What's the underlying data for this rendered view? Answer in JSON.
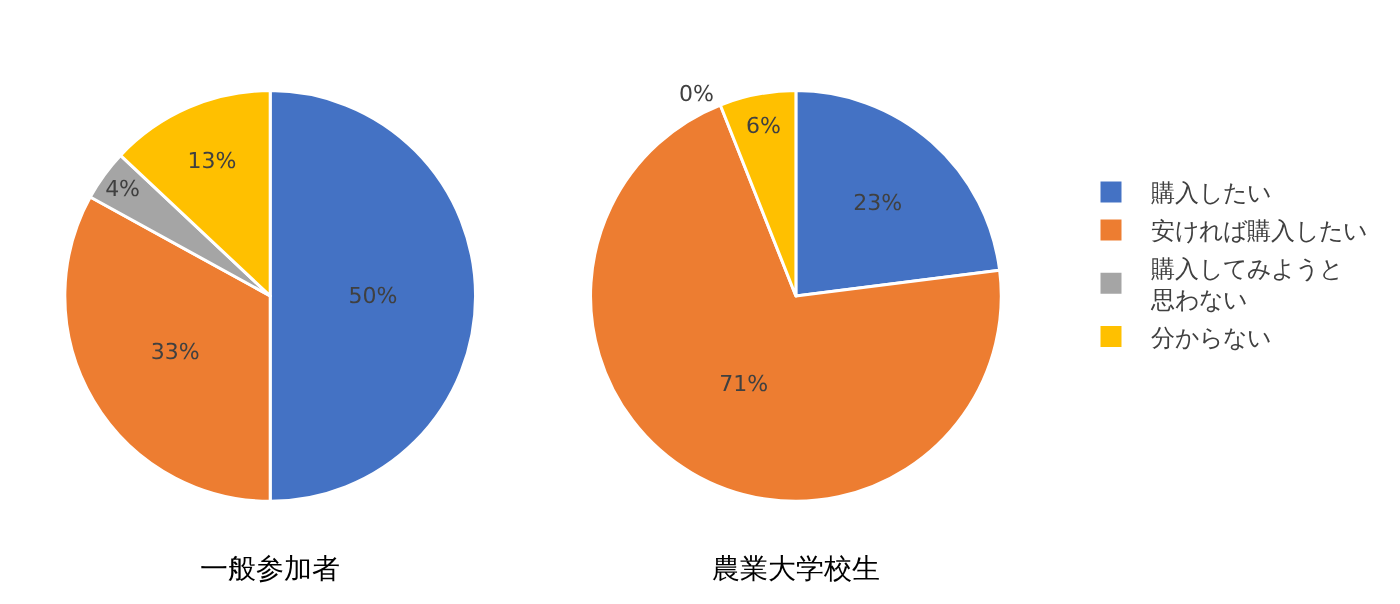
{
  "chart_data": [
    {
      "type": "pie",
      "title": "一般参加者",
      "categories": [
        "購入したい",
        "安ければ購入したい",
        "購入してみようと思わない",
        "分からない"
      ],
      "values": [
        50,
        33,
        4,
        13
      ],
      "value_labels": [
        "50%",
        "33%",
        "4%",
        "13%"
      ],
      "colors": [
        "#4472c4",
        "#ed7d31",
        "#a5a5a5",
        "#ffc000"
      ],
      "legend": "right"
    },
    {
      "type": "pie",
      "title": "農業大学校生",
      "categories": [
        null,
        null,
        null,
        null
      ],
      "values": [
        23,
        71,
        0,
        6
      ],
      "value_labels": [
        "23%",
        "71%",
        "0%",
        "6%"
      ],
      "colors": [
        "#4472c4",
        "#ed7d31",
        "#a5a5a5",
        "#ffc000"
      ]
    }
  ]
}
